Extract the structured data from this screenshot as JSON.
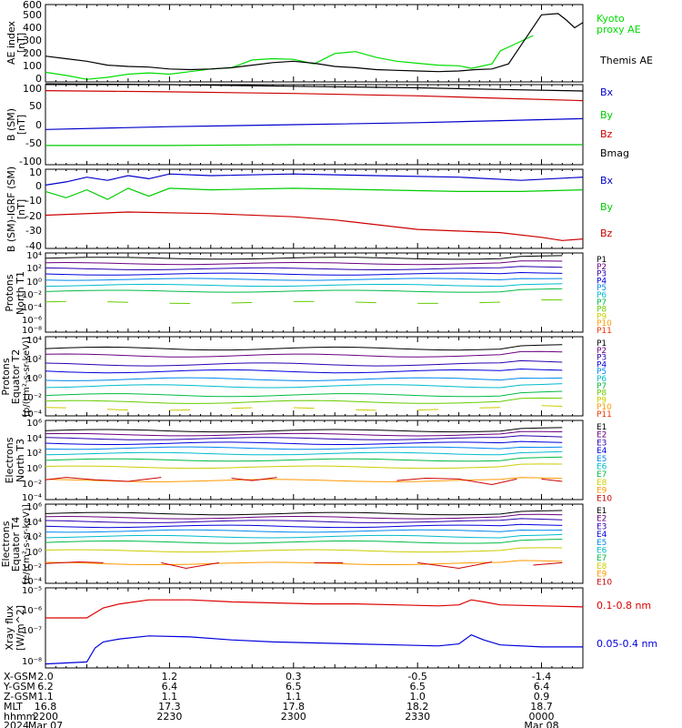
{
  "chart_data": [
    {
      "type": "line",
      "ylabel": "AE index [nT]",
      "ylim": [
        0,
        600
      ],
      "yticks": [
        0,
        100,
        200,
        300,
        400,
        500,
        600
      ],
      "series": [
        {
          "name": "Kyoto proxy AE",
          "color": "#00dd00",
          "x": [
            0,
            5,
            10,
            15,
            20,
            25,
            30,
            35,
            40,
            45,
            50,
            55,
            60,
            65,
            70,
            75,
            80,
            85,
            90,
            95,
            100,
            103,
            108,
            110,
            114,
            118
          ],
          "values": [
            75,
            50,
            20,
            35,
            60,
            70,
            60,
            80,
            100,
            110,
            170,
            180,
            175,
            140,
            220,
            235,
            190,
            160,
            145,
            130,
            125,
            105,
            140,
            240,
            300,
            360
          ]
        },
        {
          "name": "Themis AE",
          "color": "#000000",
          "x": [
            0,
            5,
            10,
            15,
            20,
            25,
            30,
            35,
            40,
            45,
            50,
            55,
            60,
            65,
            70,
            75,
            80,
            85,
            90,
            95,
            100,
            104,
            108,
            112,
            116,
            120,
            124,
            126,
            128,
            130
          ],
          "values": [
            200,
            180,
            160,
            130,
            120,
            115,
            100,
            95,
            100,
            110,
            130,
            150,
            160,
            145,
            120,
            110,
            95,
            90,
            85,
            80,
            85,
            95,
            100,
            140,
            330,
            520,
            530,
            480,
            420,
            460
          ]
        }
      ]
    },
    {
      "type": "line",
      "ylabel": "B (SM) [nT]",
      "ylim": [
        -100,
        100
      ],
      "yticks": [
        -100,
        -50,
        0,
        50,
        100
      ],
      "series": [
        {
          "name": "Bx",
          "color": "#0000cc",
          "x": [
            0,
            30,
            60,
            90,
            110,
            130
          ],
          "values": [
            -12,
            -5,
            0,
            5,
            10,
            15
          ]
        },
        {
          "name": "By",
          "color": "#00cc00",
          "x": [
            0,
            30,
            60,
            90,
            110,
            130
          ],
          "values": [
            -52,
            -52,
            -50,
            -50,
            -50,
            -50
          ]
        },
        {
          "name": "Bz",
          "color": "#cc0000",
          "x": [
            0,
            30,
            60,
            90,
            110,
            130
          ],
          "values": [
            85,
            82,
            78,
            72,
            66,
            60
          ]
        },
        {
          "name": "Bmag",
          "color": "#000000",
          "x": [
            0,
            30,
            60,
            90,
            110,
            130
          ],
          "values": [
            102,
            100,
            96,
            92,
            88,
            84
          ]
        }
      ]
    },
    {
      "type": "line",
      "ylabel": "B (SM)-IGRF (SM) [nT]",
      "ylim": [
        -40,
        10
      ],
      "yticks": [
        -40,
        -30,
        -20,
        -10,
        0,
        10
      ],
      "series": [
        {
          "name": "Bx",
          "color": "#0000cc",
          "x": [
            0,
            5,
            10,
            15,
            20,
            25,
            30,
            40,
            60,
            80,
            100,
            115,
            130
          ],
          "values": [
            0,
            2,
            5,
            3,
            6,
            4,
            7,
            6,
            7,
            6,
            5,
            3,
            5
          ]
        },
        {
          "name": "By",
          "color": "#00cc00",
          "x": [
            0,
            5,
            10,
            15,
            20,
            25,
            30,
            40,
            60,
            80,
            100,
            115,
            130
          ],
          "values": [
            -4,
            -8,
            -3,
            -9,
            -2,
            -7,
            -2,
            -3,
            -2,
            -3,
            -4,
            -4,
            -3
          ]
        },
        {
          "name": "Bz",
          "color": "#cc0000",
          "x": [
            0,
            20,
            40,
            60,
            70,
            80,
            90,
            100,
            110,
            120,
            125,
            130
          ],
          "values": [
            -19,
            -17,
            -18,
            -20,
            -22,
            -25,
            -28,
            -29,
            -30,
            -33,
            -35,
            -34
          ]
        }
      ]
    },
    {
      "type": "line",
      "title": "Protons North T1",
      "ylabel": "Protons North T1",
      "yscale": "log",
      "ylim_exp": [
        -8,
        4
      ],
      "yticks": [
        "10^4",
        "10^2",
        "10^0",
        "10^-2",
        "10^-4",
        "10^-6",
        "10^-8"
      ],
      "channels": [
        "P1",
        "P2",
        "P3",
        "P4",
        "P5",
        "P6",
        "P7",
        "P8",
        "P9",
        "P10",
        "P11"
      ],
      "channel_colors": [
        "#000000",
        "#6a0080",
        "#2a00b0",
        "#0000dd",
        "#0088ee",
        "#00bbcc",
        "#00bb44",
        "#66cc00",
        "#cccc00",
        "#ff9900",
        "#ee3300"
      ],
      "level_exp": [
        3.2,
        2.4,
        1.6,
        0.8,
        0,
        -0.9,
        -1.8,
        -3.5,
        null,
        null,
        null
      ]
    },
    {
      "type": "line",
      "ylabel": "Protons Equator T2 [p/(cm^2-s-sr-keV)]",
      "yscale": "log",
      "ylim_exp": [
        -4,
        4
      ],
      "yticks": [
        "10^4",
        "10^2",
        "10^0",
        "10^-2",
        "10^-4"
      ],
      "channels": [
        "P1",
        "P2",
        "P3",
        "P4",
        "P5",
        "P6",
        "P7",
        "P8",
        "P9",
        "P10",
        "P11"
      ],
      "channel_colors": [
        "#000000",
        "#6a0080",
        "#2a00b0",
        "#0000dd",
        "#0088ee",
        "#00bbcc",
        "#00bb44",
        "#66cc00",
        "#cccc00",
        "#ff9900",
        "#ee3300"
      ],
      "level_exp": [
        2.8,
        2.1,
        1.2,
        0.5,
        -0.3,
        -1.0,
        -1.9,
        -2.6,
        -3.3,
        null,
        null
      ]
    },
    {
      "type": "line",
      "ylabel": "Electrons North T3",
      "yscale": "log",
      "ylim_exp": [
        -4,
        6
      ],
      "yticks": [
        "10^6",
        "10^4",
        "10^2",
        "10^0",
        "10^-2",
        "10^-4"
      ],
      "channels": [
        "E1",
        "E2",
        "E3",
        "E4",
        "E5",
        "E6",
        "E7",
        "E8",
        "E9",
        "E10"
      ],
      "channel_colors": [
        "#000000",
        "#6a0080",
        "#2a00b0",
        "#0000dd",
        "#0088ee",
        "#00bbcc",
        "#00bb44",
        "#cccc00",
        "#ff9900",
        "#cc0000"
      ],
      "level_exp": [
        4.7,
        4.2,
        3.7,
        3.1,
        2.5,
        1.8,
        1.0,
        0.1,
        -1.6,
        null
      ]
    },
    {
      "type": "line",
      "ylabel": "Electrons Equator T4 [e/(cm^2-s-sr-keV)]",
      "yscale": "log",
      "ylim_exp": [
        -4,
        6
      ],
      "yticks": [
        "10^6",
        "10^4",
        "10^2",
        "10^0",
        "10^-2",
        "10^-4"
      ],
      "channels": [
        "E1",
        "E2",
        "E3",
        "E4",
        "E5",
        "E6",
        "E7",
        "E8",
        "E9",
        "E10"
      ],
      "channel_colors": [
        "#000000",
        "#6a0080",
        "#2a00b0",
        "#0000dd",
        "#0088ee",
        "#00bbcc",
        "#00bb44",
        "#cccc00",
        "#ff9900",
        "#cc0000"
      ],
      "level_exp": [
        4.8,
        4.3,
        3.8,
        3.2,
        2.6,
        1.9,
        1.2,
        0.1,
        -1.5,
        null
      ]
    },
    {
      "type": "line",
      "ylabel": "Xray flux [W/m^2]",
      "yscale": "log",
      "ylim_exp": [
        -9,
        -5
      ],
      "series": [
        {
          "name": "0.1-0.8 nm",
          "color": "#dd0000",
          "x": [
            0,
            10,
            14,
            18,
            25,
            35,
            45,
            55,
            65,
            75,
            85,
            95,
            100,
            103,
            106,
            110,
            120,
            130
          ],
          "values_exp": [
            -6.5,
            -6.5,
            -6.0,
            -5.8,
            -5.6,
            -5.6,
            -5.7,
            -5.75,
            -5.8,
            -5.8,
            -5.85,
            -5.9,
            -5.85,
            -5.6,
            -5.7,
            -5.85,
            -5.9,
            -5.95
          ]
        },
        {
          "name": "0.05-0.4 nm",
          "color": "#0000dd",
          "x": [
            0,
            10,
            12,
            14,
            18,
            25,
            35,
            45,
            55,
            65,
            75,
            85,
            95,
            100,
            103,
            106,
            110,
            120,
            130
          ],
          "values_exp": [
            -8.8,
            -8.7,
            -8.0,
            -7.7,
            -7.55,
            -7.4,
            -7.45,
            -7.6,
            -7.7,
            -7.75,
            -7.8,
            -7.85,
            -7.9,
            -7.8,
            -7.35,
            -7.6,
            -7.85,
            -7.95,
            -7.95
          ]
        }
      ]
    }
  ],
  "ytick_labels": {
    "ae": [
      "0",
      "100",
      "200",
      "300",
      "400",
      "500",
      "600"
    ],
    "b": [
      "-100",
      "-50",
      "0",
      "50",
      "100"
    ],
    "bd": [
      "-40",
      "-30",
      "-20",
      "-10",
      "0",
      "10"
    ]
  },
  "labels": {
    "ae_ylabel_1": "AE index",
    "ae_ylabel_2": "[nT]",
    "b_ylabel_1": "B (SM)",
    "b_ylabel_2": "[nT]",
    "bd_ylabel_1": "B (SM)-IGRF (SM)",
    "bd_ylabel_2": "[nT]",
    "pn_ylabel_1": "Protons",
    "pn_ylabel_2": "North T1",
    "pe_ylabel_1": "Protons",
    "pe_ylabel_2": "Equator T2",
    "pe_ylabel_3": "[p/(cm²-s-sr-keV)]",
    "en_ylabel_1": "Electrons",
    "en_ylabel_2": "North T3",
    "ee_ylabel_1": "Electrons",
    "ee_ylabel_2": "Equator T4",
    "ee_ylabel_3": "[e/(cm²-s-sr-keV)]",
    "xr_ylabel_1": "Xray flux",
    "xr_ylabel_2": "[W/m^2]",
    "kyoto_1": "Kyoto",
    "kyoto_2": "proxy AE",
    "themis": "Themis AE",
    "bx": "Bx",
    "by": "By",
    "bz": "Bz",
    "bmag": "Bmag",
    "xr1": "0.1-0.8 nm",
    "xr2": "0.05-0.4 nm"
  },
  "log_ticks": {
    "pn": [
      "10⁴",
      "10²",
      "10⁰",
      "10⁻²",
      "10⁻⁴",
      "10⁻⁶",
      "10⁻⁸"
    ],
    "pe": [
      "10⁴",
      "10²",
      "10⁰",
      "10⁻²",
      "10⁻⁴"
    ],
    "en": [
      "10⁶",
      "10⁴",
      "10²",
      "10⁰",
      "10⁻²",
      "10⁻⁴"
    ],
    "ee": [
      "10⁶",
      "10⁴",
      "10²",
      "10⁰",
      "10⁻²",
      "10⁻⁴"
    ],
    "xr": [
      "10⁻⁵",
      "10⁻⁶",
      "10⁻⁷",
      "10⁻⁸"
    ]
  },
  "footer": {
    "row_labels": [
      "X-GSM",
      "Y-GSM",
      "Z-GSM",
      "MLT",
      "hhmm",
      "2024"
    ],
    "columns": [
      [
        "2.0",
        "6.2",
        "1.1",
        "16.8",
        "2200",
        "Mar 07"
      ],
      [
        "1.2",
        "6.4",
        "1.1",
        "17.3",
        "2230",
        ""
      ],
      [
        "0.3",
        "6.5",
        "1.1",
        "17.8",
        "2300",
        ""
      ],
      [
        "-0.5",
        "6.5",
        "1.0",
        "18.2",
        "2330",
        ""
      ],
      [
        "-1.4",
        "6.4",
        "0.9",
        "18.7",
        "0000",
        "Mar 08"
      ]
    ]
  }
}
